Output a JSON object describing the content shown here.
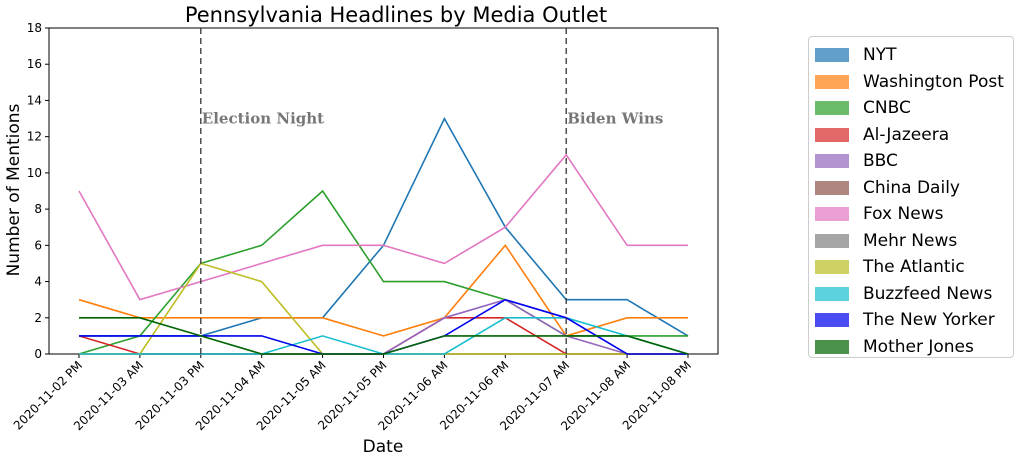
{
  "chart_data": {
    "type": "line",
    "title": "Pennsylvania Headlines by Media Outlet",
    "xlabel": "Date",
    "ylabel": "Number of Mentions",
    "ylim": [
      0,
      18
    ],
    "yticks": [
      0,
      2,
      4,
      6,
      8,
      10,
      12,
      14,
      16,
      18
    ],
    "categories": [
      "2020-11-02 PM",
      "2020-11-03 AM",
      "2020-11-03 PM",
      "2020-11-04 AM",
      "2020-11-05 AM",
      "2020-11-05 PM",
      "2020-11-06 AM",
      "2020-11-06 PM",
      "2020-11-07 AM",
      "2020-11-08 AM",
      "2020-11-08 PM"
    ],
    "grid": false,
    "legend_position": "right-outside",
    "annotations": [
      {
        "text": "Election Night",
        "category": "2020-11-03 PM",
        "y": 13
      },
      {
        "text": "Biden Wins",
        "category": "2020-11-07 AM",
        "y": 13
      }
    ],
    "series": [
      {
        "name": "NYT",
        "color": "#1f77b4",
        "values": [
          1,
          1,
          1,
          2,
          2,
          6,
          13,
          7,
          3,
          3,
          1
        ]
      },
      {
        "name": "Washington Post",
        "color": "#ff7f0e",
        "values": [
          3,
          2,
          2,
          2,
          2,
          1,
          2,
          6,
          1,
          2,
          2
        ]
      },
      {
        "name": "CNBC",
        "color": "#2ca02c",
        "values": [
          0,
          1,
          5,
          6,
          9,
          4,
          4,
          3,
          1,
          1,
          1
        ]
      },
      {
        "name": "Al-Jazeera",
        "color": "#d62728",
        "values": [
          1,
          0,
          0,
          0,
          0,
          0,
          2,
          2,
          0,
          0,
          0
        ]
      },
      {
        "name": "BBC",
        "color": "#9467bd",
        "values": [
          0,
          0,
          0,
          0,
          0,
          0,
          2,
          3,
          1,
          0,
          0
        ]
      },
      {
        "name": "China Daily",
        "color": "#8c564b",
        "values": [
          0,
          0,
          0,
          0,
          0,
          0,
          0,
          0,
          0,
          0,
          0
        ]
      },
      {
        "name": "Fox News",
        "color": "#e377c2",
        "values": [
          9,
          3,
          4,
          5,
          6,
          6,
          5,
          7,
          11,
          6,
          6
        ]
      },
      {
        "name": "Mehr News",
        "color": "#7f7f7f",
        "values": [
          0,
          0,
          0,
          0,
          0,
          0,
          0,
          0,
          0,
          0,
          0
        ]
      },
      {
        "name": "The Atlantic",
        "color": "#bcbd22",
        "values": [
          0,
          0,
          5,
          4,
          0,
          0,
          0,
          0,
          0,
          0,
          0
        ]
      },
      {
        "name": "Buzzfeed News",
        "color": "#17becf",
        "values": [
          0,
          0,
          0,
          0,
          1,
          0,
          0,
          2,
          2,
          1,
          0
        ]
      },
      {
        "name": "The New Yorker",
        "color": "#0000ee",
        "values": [
          1,
          1,
          1,
          1,
          0,
          0,
          1,
          3,
          2,
          0,
          0
        ]
      },
      {
        "name": "Mother Jones",
        "color": "#006400",
        "values": [
          2,
          2,
          1,
          0,
          0,
          0,
          1,
          1,
          1,
          1,
          0
        ]
      }
    ]
  }
}
